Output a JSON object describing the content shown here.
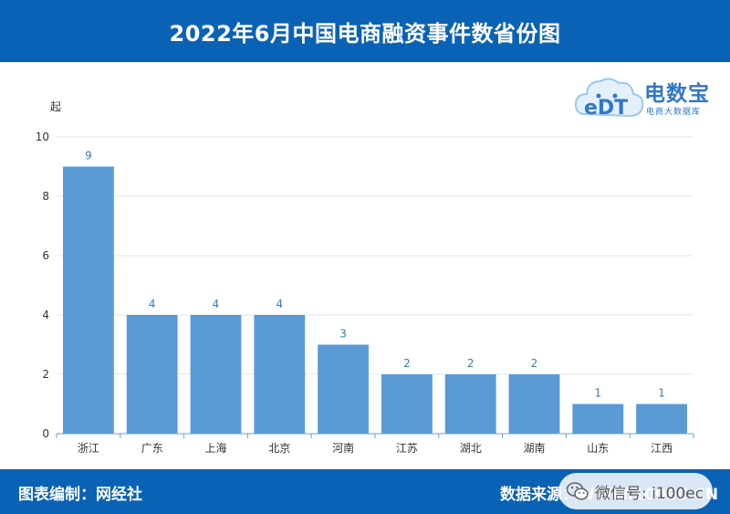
{
  "header": {
    "title": "2022年6月中国电商融资事件数省份图"
  },
  "logo": {
    "name": "电数宝",
    "subtitle": "电商大数据库",
    "mark": "eDT"
  },
  "footer": {
    "left": "图表编制：网经社",
    "right": "数据来源：WWW.100EC.CN",
    "watermark": "微信号: i100ec"
  },
  "colors": {
    "header_bg": "#0a62b5",
    "bar": "#5b9bd5",
    "label": "#3a7ab8"
  },
  "chart_data": {
    "type": "bar",
    "title": "2022年6月中国电商融资事件数省份图",
    "ylabel": "起",
    "xlabel": "",
    "categories": [
      "浙江",
      "广东",
      "上海",
      "北京",
      "河南",
      "江苏",
      "湖北",
      "湖南",
      "山东",
      "江西"
    ],
    "values": [
      9,
      4,
      4,
      4,
      3,
      2,
      2,
      2,
      1,
      1
    ],
    "ylim": [
      0,
      10
    ],
    "yticks": [
      0,
      2,
      4,
      6,
      8,
      10
    ],
    "grid": true,
    "legend": "none"
  }
}
